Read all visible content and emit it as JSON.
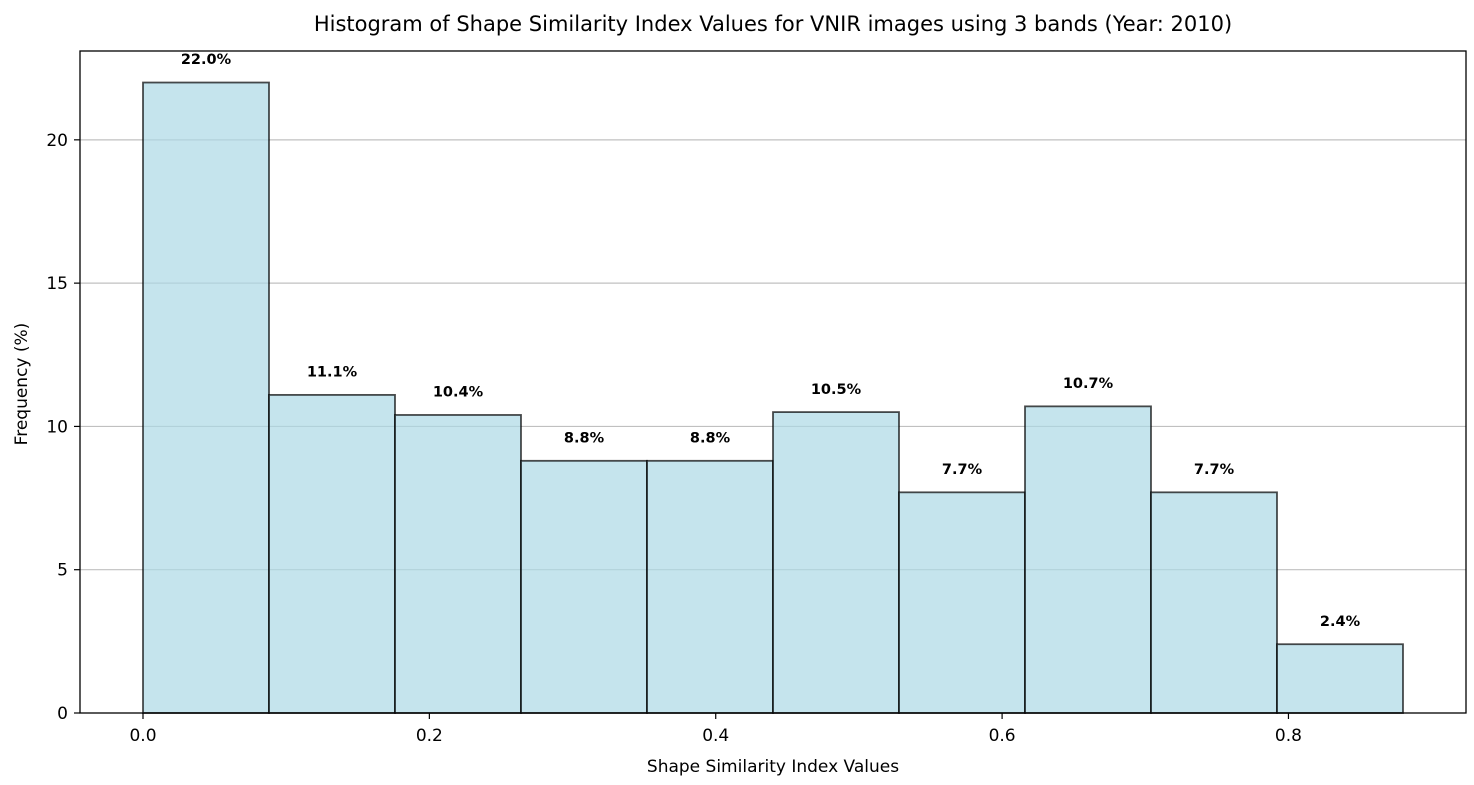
{
  "chart_data": {
    "type": "bar",
    "title": "Histogram of Shape Similarity Index Values for VNIR images using 3 bands (Year: 2010)",
    "xlabel": "Shape Similarity Index Values",
    "ylabel": "Frequency (%)",
    "bins": [
      {
        "x0": 0.0,
        "x1": 0.088,
        "value": 22.0,
        "label": "22.0%"
      },
      {
        "x0": 0.088,
        "x1": 0.176,
        "value": 11.1,
        "label": "11.1%"
      },
      {
        "x0": 0.176,
        "x1": 0.264,
        "value": 10.4,
        "label": "10.4%"
      },
      {
        "x0": 0.264,
        "x1": 0.352,
        "value": 8.8,
        "label": "8.8%"
      },
      {
        "x0": 0.352,
        "x1": 0.44,
        "value": 8.8,
        "label": "8.8%"
      },
      {
        "x0": 0.44,
        "x1": 0.528,
        "value": 10.5,
        "label": "10.5%"
      },
      {
        "x0": 0.528,
        "x1": 0.616,
        "value": 7.7,
        "label": "7.7%"
      },
      {
        "x0": 0.616,
        "x1": 0.704,
        "value": 10.7,
        "label": "10.7%"
      },
      {
        "x0": 0.704,
        "x1": 0.792,
        "value": 7.7,
        "label": "7.7%"
      },
      {
        "x0": 0.792,
        "x1": 0.88,
        "value": 2.4,
        "label": "2.4%"
      }
    ],
    "xticks": [
      "0.0",
      "0.2",
      "0.4",
      "0.6",
      "0.8"
    ],
    "xtick_values": [
      0.0,
      0.2,
      0.4,
      0.6,
      0.8
    ],
    "yticks": [
      "0",
      "5",
      "10",
      "15",
      "20"
    ],
    "ytick_values": [
      0,
      5,
      10,
      15,
      20
    ],
    "xlim": [
      -0.044,
      0.924
    ],
    "ylim": [
      0,
      23.1
    ],
    "grid": "y",
    "bar_color": "#add8e6",
    "edge_color": "#000000",
    "grid_color": "#c0c0c0"
  }
}
